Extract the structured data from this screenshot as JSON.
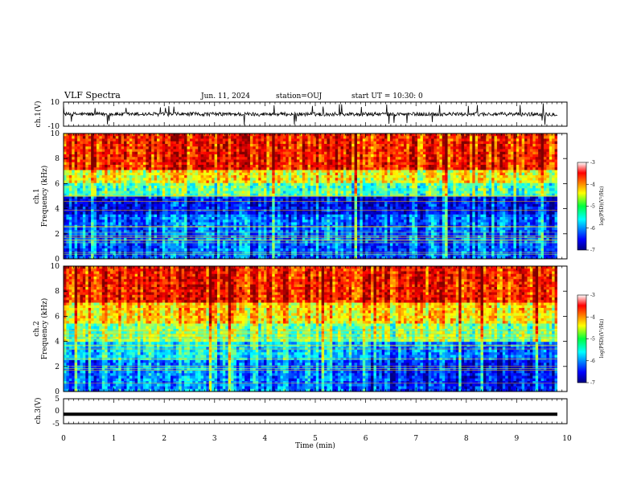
{
  "header": {
    "title": "VLF Spectra",
    "date": "Jun. 11, 2024",
    "station": "station=OUJ",
    "start_ut": "start UT =   10:30: 0"
  },
  "chart_data": [
    {
      "type": "line",
      "id": "ch1-waveform",
      "ylabel": "ch.1(V)",
      "ylim": [
        -10,
        10
      ],
      "yticks": [
        "10",
        "-10"
      ],
      "xlim": [
        0,
        10
      ],
      "description_of_signal": "noisy waveform centered near 0 V (approx ±3 V) with occasional spikes",
      "baseline_v": 0
    },
    {
      "type": "heatmap",
      "id": "ch1-spectrogram",
      "ylabel_line1": "ch.1",
      "ylabel_line2": "Frequency (kHz)",
      "ylim": [
        0,
        10
      ],
      "yticks": [
        "0",
        "2",
        "4",
        "6",
        "8",
        "10"
      ],
      "xlim": [
        0,
        10
      ],
      "colorbar_label": "log(PSD)(V²/Hz)",
      "colorbar_ticks": [
        "-3",
        "-4",
        "-5",
        "-6",
        "-7"
      ]
    },
    {
      "type": "heatmap",
      "id": "ch2-spectrogram",
      "ylabel_line1": "ch.2",
      "ylabel_line2": "Frequency (kHz)",
      "ylim": [
        0,
        10
      ],
      "yticks": [
        "0",
        "2",
        "4",
        "6",
        "8",
        "10"
      ],
      "xlim": [
        0,
        10
      ],
      "colorbar_label": "log(PSD)(V²/Hz)",
      "colorbar_ticks": [
        "-3",
        "-4",
        "-5",
        "-6",
        "-7"
      ]
    },
    {
      "type": "line",
      "id": "ch3-waveform",
      "ylabel": "ch.3(V)",
      "ylim": [
        -5,
        5
      ],
      "yticks": [
        "5",
        "0",
        "-5"
      ],
      "xlim": [
        0,
        10
      ],
      "constant_value_v": -1.2
    }
  ],
  "xaxis": {
    "label": "Time (min)",
    "ticks": [
      "0",
      "1",
      "2",
      "3",
      "4",
      "5",
      "6",
      "7",
      "8",
      "9",
      "10"
    ]
  },
  "colors": {
    "low": "#00007f",
    "mid": "#00ff80",
    "high": "#ff0000"
  }
}
